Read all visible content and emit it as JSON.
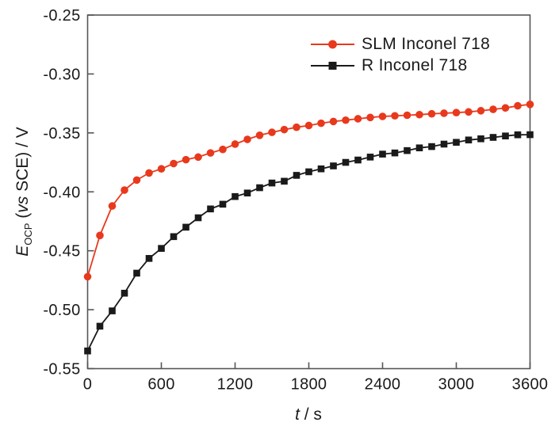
{
  "figure": {
    "background": "#ffffff",
    "frame_color": "#555555",
    "text_color": "#1a1a1a"
  },
  "chart_data": {
    "type": "line",
    "title": "",
    "xlabel_parts": {
      "symbol": "t",
      "rest": " / s"
    },
    "ylabel_parts": {
      "symbol": "E",
      "subscript": "OCP",
      "open": " (",
      "vs": "vs",
      "rest": " SCE) / V"
    },
    "xlim": [
      0,
      3600
    ],
    "ylim": [
      -0.55,
      -0.25
    ],
    "x_ticks": [
      0,
      600,
      1200,
      1800,
      2400,
      3000,
      3600
    ],
    "x_tick_labels": [
      "0",
      "600",
      "1200",
      "1800",
      "2400",
      "3000",
      "3600"
    ],
    "y_ticks": [
      -0.25,
      -0.3,
      -0.35,
      -0.4,
      -0.45,
      -0.5,
      -0.55
    ],
    "y_tick_labels": [
      "-0.25",
      "-0.30",
      "-0.35",
      "-0.40",
      "-0.45",
      "-0.50",
      "-0.55"
    ],
    "grid": false,
    "legend_position": "upper-right-inside",
    "series": [
      {
        "name": "SLM Inconel 718",
        "color": "#e8391d",
        "marker": "circle",
        "x": [
          0,
          100,
          200,
          300,
          400,
          500,
          600,
          700,
          800,
          900,
          1000,
          1100,
          1200,
          1300,
          1400,
          1500,
          1600,
          1700,
          1800,
          1900,
          2000,
          2100,
          2200,
          2300,
          2400,
          2500,
          2600,
          2700,
          2800,
          2900,
          3000,
          3100,
          3200,
          3300,
          3400,
          3500,
          3600
        ],
        "y": [
          -0.472,
          -0.437,
          -0.412,
          -0.3985,
          -0.39,
          -0.384,
          -0.3805,
          -0.376,
          -0.3727,
          -0.3705,
          -0.367,
          -0.364,
          -0.3595,
          -0.3555,
          -0.352,
          -0.3495,
          -0.3472,
          -0.3452,
          -0.3437,
          -0.3418,
          -0.3403,
          -0.3392,
          -0.338,
          -0.3369,
          -0.336,
          -0.3355,
          -0.335,
          -0.3345,
          -0.3338,
          -0.3333,
          -0.3328,
          -0.3322,
          -0.3312,
          -0.33,
          -0.3288,
          -0.327,
          -0.3258
        ]
      },
      {
        "name": "R Inconel 718",
        "color": "#1a1a1a",
        "marker": "square",
        "x": [
          0,
          100,
          200,
          300,
          400,
          500,
          600,
          700,
          800,
          900,
          1000,
          1100,
          1200,
          1300,
          1400,
          1500,
          1600,
          1700,
          1800,
          1900,
          2000,
          2100,
          2200,
          2300,
          2400,
          2500,
          2600,
          2700,
          2800,
          2900,
          3000,
          3100,
          3200,
          3300,
          3400,
          3500,
          3600
        ],
        "y": [
          -0.535,
          -0.514,
          -0.501,
          -0.486,
          -0.469,
          -0.4565,
          -0.448,
          -0.438,
          -0.43,
          -0.422,
          -0.4145,
          -0.4105,
          -0.404,
          -0.401,
          -0.3965,
          -0.3925,
          -0.391,
          -0.386,
          -0.383,
          -0.3805,
          -0.378,
          -0.375,
          -0.373,
          -0.3705,
          -0.368,
          -0.367,
          -0.365,
          -0.3627,
          -0.3616,
          -0.3595,
          -0.358,
          -0.356,
          -0.355,
          -0.3538,
          -0.3526,
          -0.3516,
          -0.3515
        ]
      }
    ]
  }
}
